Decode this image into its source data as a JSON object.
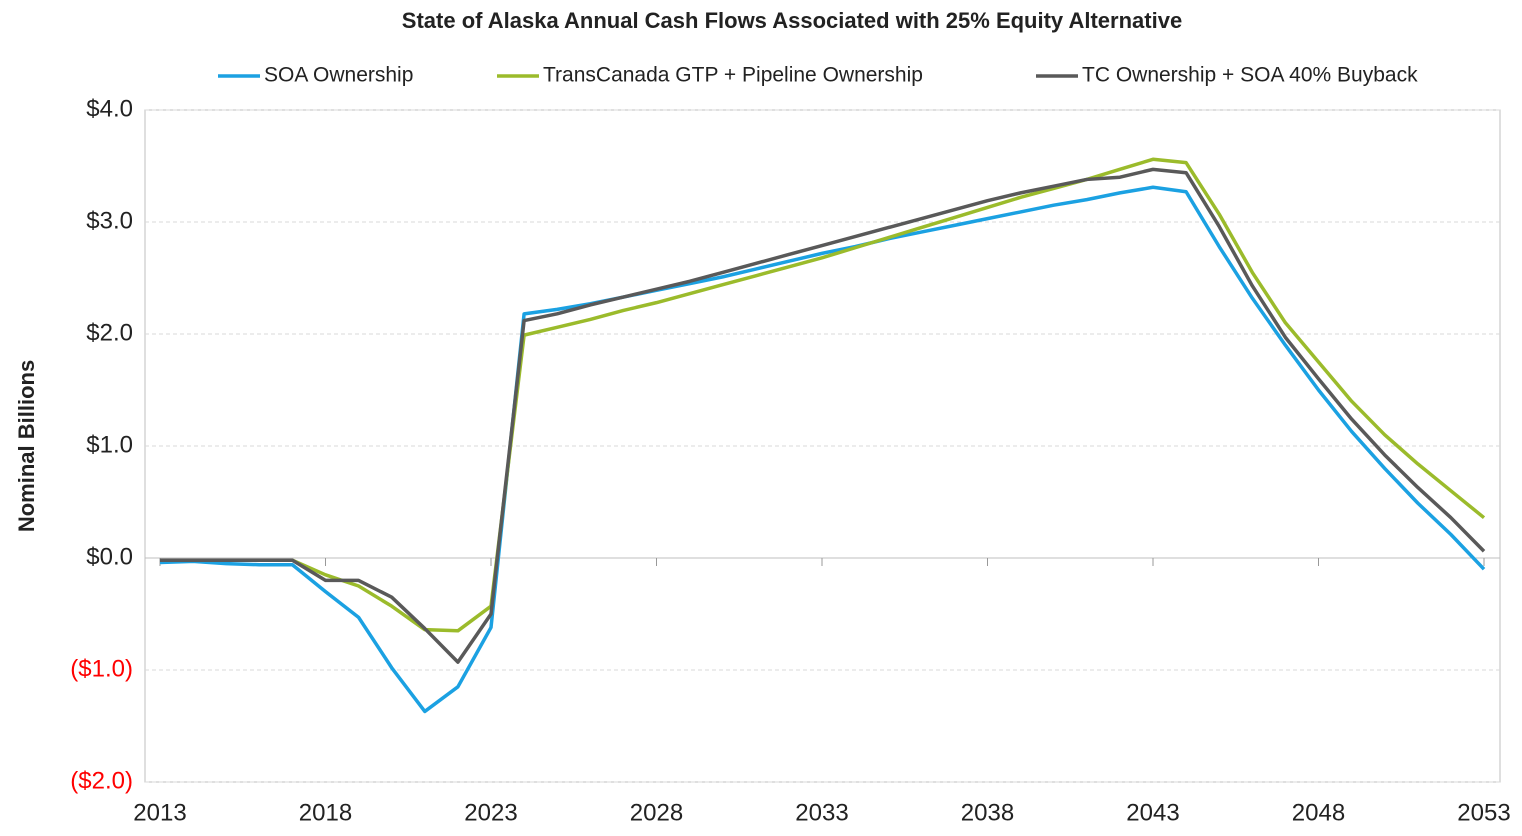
{
  "chart_data": {
    "type": "line",
    "title": "State of Alaska Annual Cash Flows Associated with 25% Equity Alternative",
    "y_label": "Nominal Billions",
    "x": [
      2013,
      2014,
      2015,
      2016,
      2017,
      2018,
      2019,
      2020,
      2021,
      2022,
      2023,
      2024,
      2025,
      2026,
      2027,
      2028,
      2029,
      2030,
      2031,
      2032,
      2033,
      2034,
      2035,
      2036,
      2037,
      2038,
      2039,
      2040,
      2041,
      2042,
      2043,
      2044,
      2045,
      2046,
      2047,
      2048,
      2049,
      2050,
      2051,
      2052,
      2053
    ],
    "series": [
      {
        "name": "SOA Ownership",
        "color": "#1ba1e2",
        "values": [
          -0.04,
          -0.03,
          -0.05,
          -0.06,
          -0.06,
          -0.3,
          -0.53,
          -0.98,
          -1.37,
          -1.15,
          -0.62,
          2.18,
          2.22,
          2.27,
          2.33,
          2.39,
          2.45,
          2.51,
          2.58,
          2.65,
          2.72,
          2.78,
          2.85,
          2.91,
          2.97,
          3.03,
          3.09,
          3.15,
          3.2,
          3.26,
          3.31,
          3.27,
          2.78,
          2.32,
          1.9,
          1.5,
          1.13,
          0.8,
          0.49,
          0.21,
          -0.1
        ]
      },
      {
        "name": "TransCanada GTP + Pipeline Ownership",
        "color": "#9bbb2b",
        "values": [
          -0.02,
          -0.02,
          -0.02,
          -0.02,
          -0.02,
          -0.15,
          -0.25,
          -0.43,
          -0.64,
          -0.65,
          -0.43,
          1.99,
          2.06,
          2.13,
          2.21,
          2.28,
          2.36,
          2.44,
          2.52,
          2.6,
          2.68,
          2.77,
          2.86,
          2.95,
          3.04,
          3.13,
          3.22,
          3.3,
          3.38,
          3.47,
          3.56,
          3.53,
          3.07,
          2.55,
          2.1,
          1.75,
          1.4,
          1.1,
          0.84,
          0.6,
          0.36
        ]
      },
      {
        "name": "TC Ownership + SOA 40% Buyback",
        "color": "#595959",
        "values": [
          -0.02,
          -0.02,
          -0.02,
          -0.02,
          -0.02,
          -0.2,
          -0.2,
          -0.35,
          -0.63,
          -0.93,
          -0.5,
          2.12,
          2.18,
          2.26,
          2.33,
          2.4,
          2.47,
          2.55,
          2.63,
          2.71,
          2.79,
          2.87,
          2.95,
          3.03,
          3.11,
          3.19,
          3.26,
          3.32,
          3.38,
          3.4,
          3.47,
          3.44,
          2.96,
          2.43,
          1.97,
          1.6,
          1.24,
          0.92,
          0.63,
          0.36,
          0.06
        ]
      }
    ],
    "xlim": [
      2013,
      2053
    ],
    "xticks": [
      2013,
      2018,
      2023,
      2028,
      2033,
      2038,
      2043,
      2048,
      2053
    ],
    "ylim": [
      -2,
      4
    ],
    "yticks": [
      {
        "value": -2,
        "label": "($2.0)"
      },
      {
        "value": -1,
        "label": "($1.0)"
      },
      {
        "value": 0,
        "label": "$0.0"
      },
      {
        "value": 1,
        "label": "$1.0"
      },
      {
        "value": 2,
        "label": "$2.0"
      },
      {
        "value": 3,
        "label": "$3.0"
      },
      {
        "value": 4,
        "label": "$4.0"
      }
    ],
    "negative_label_color": "#ff0000",
    "grid": true,
    "legend": "top"
  }
}
